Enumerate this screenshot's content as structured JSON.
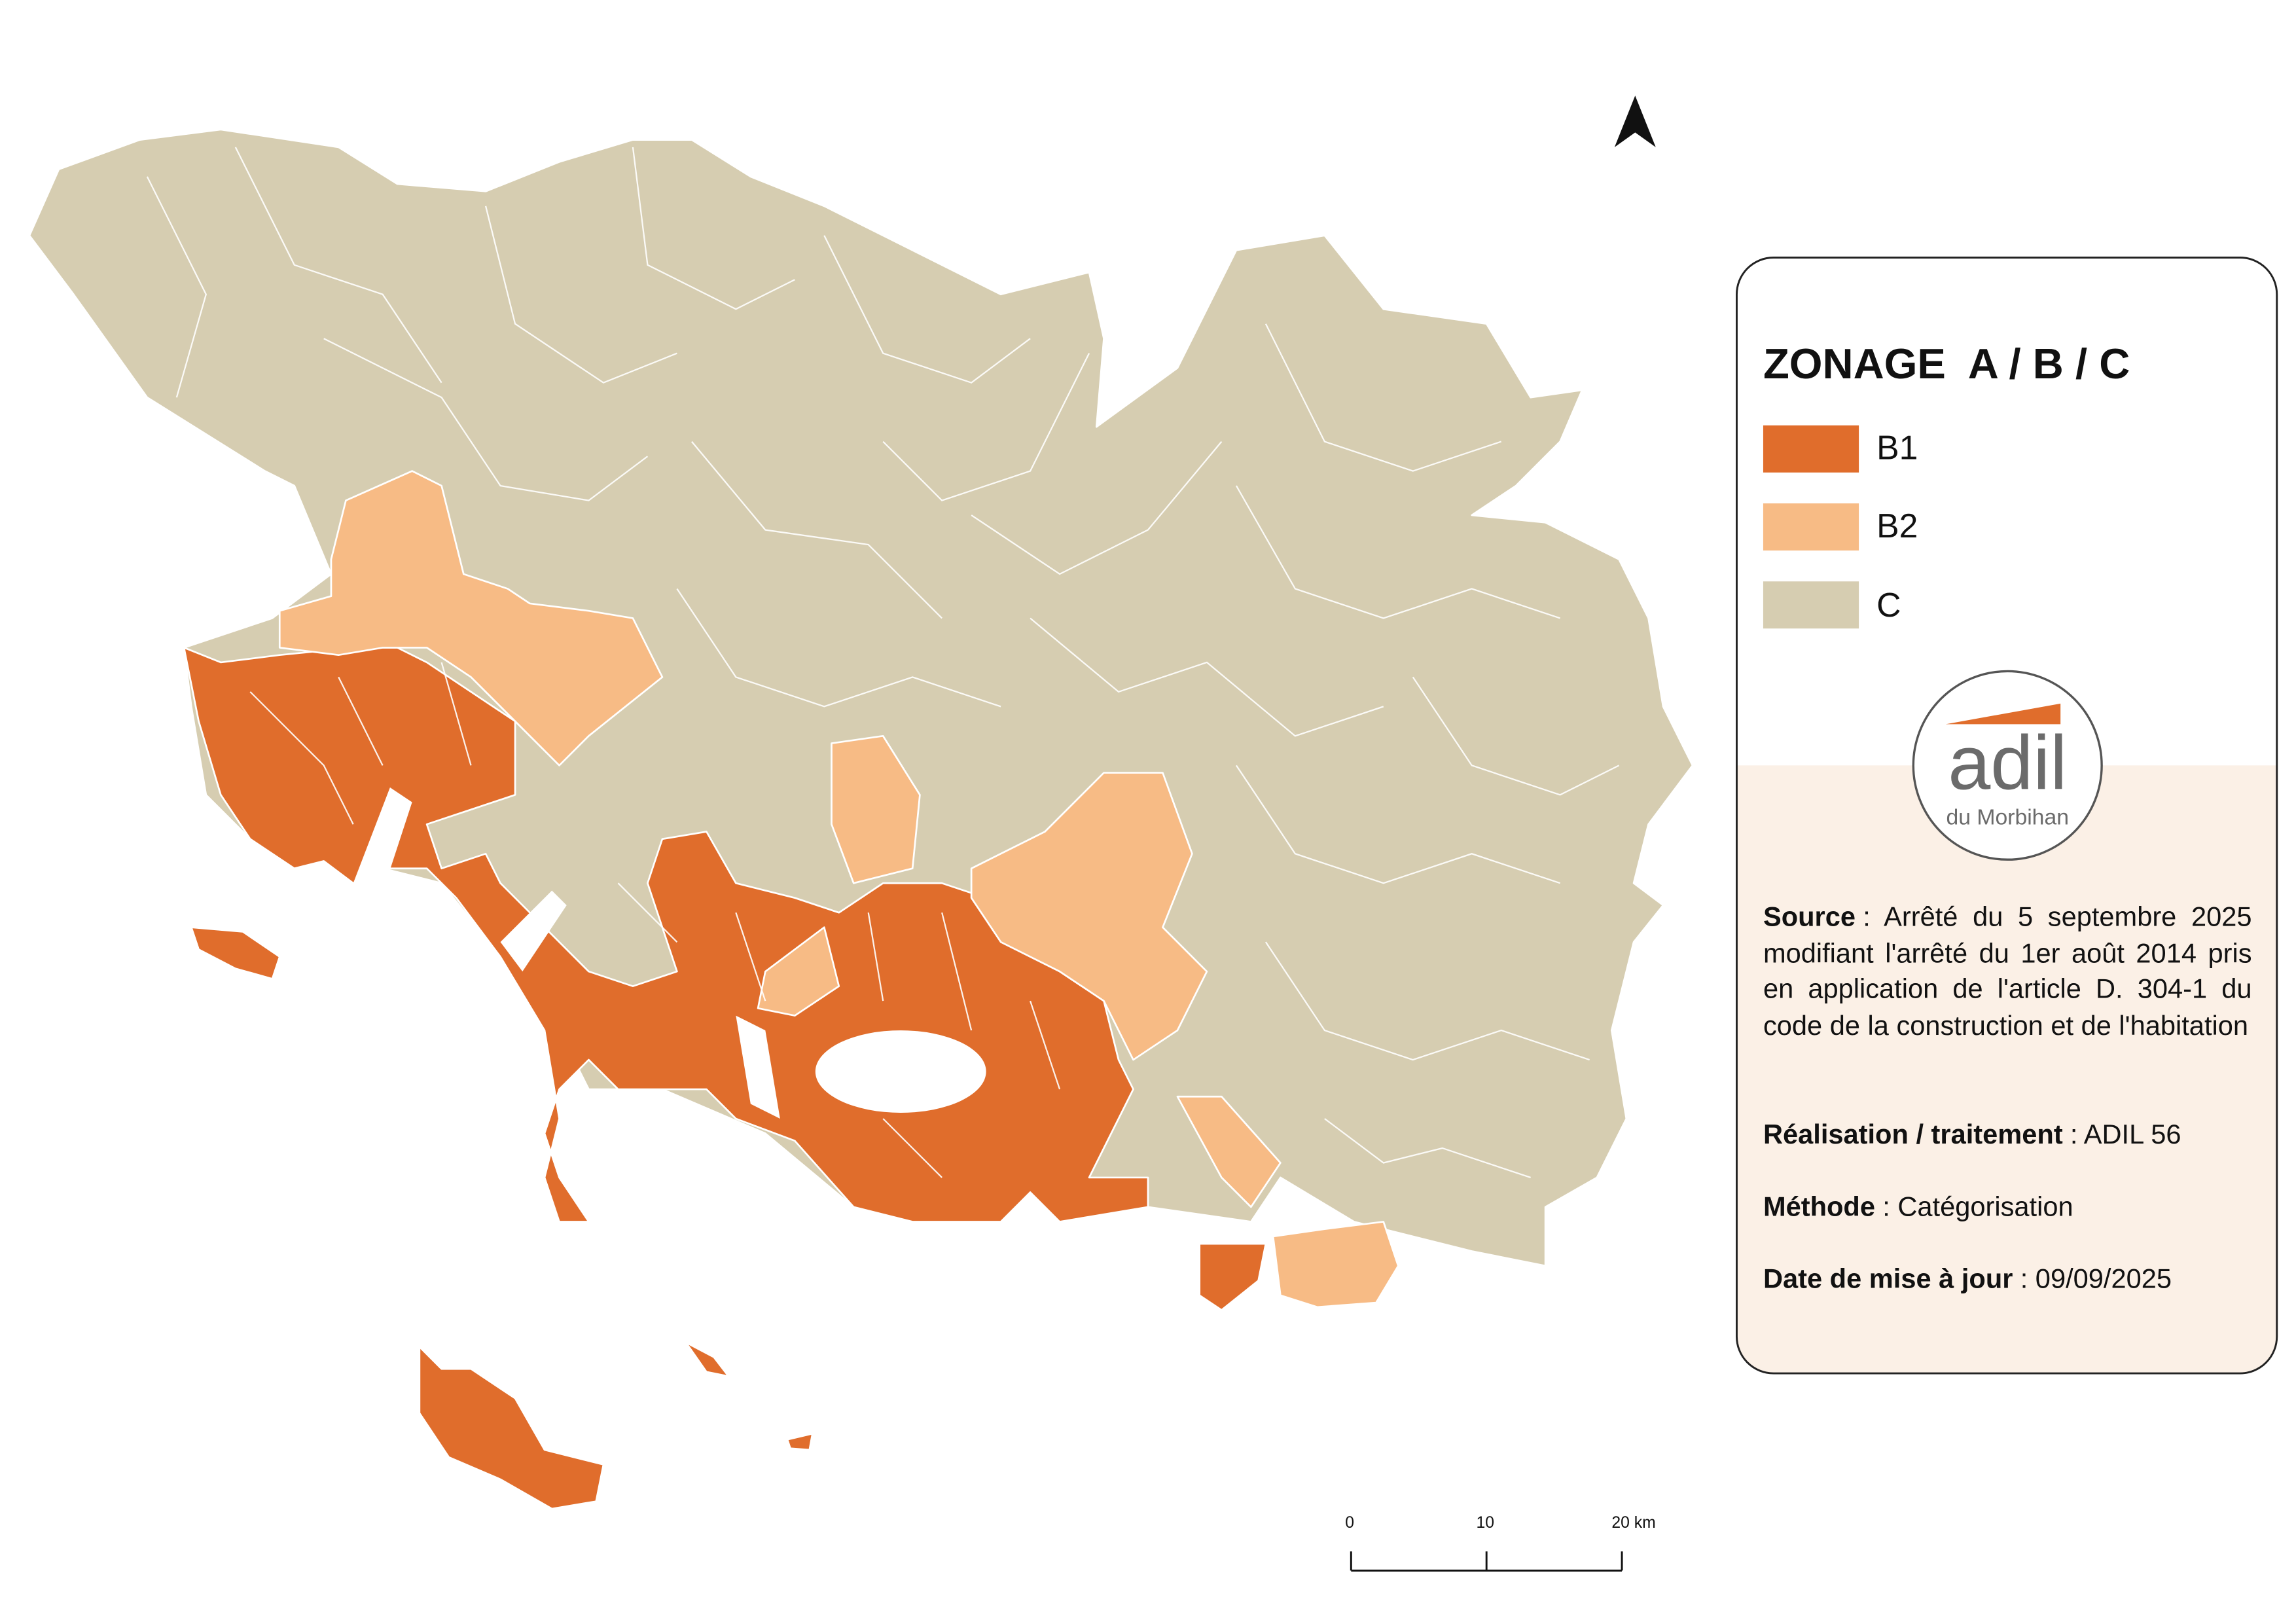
{
  "legend": {
    "title": "ZONAGE  A / B / C",
    "items": [
      {
        "label": "B1",
        "color": "#e06d2c"
      },
      {
        "label": "B2",
        "color": "#f7bb85"
      },
      {
        "label": "C",
        "color": "#d6cdb1"
      }
    ]
  },
  "logo": {
    "name": "adil",
    "subtitle": "du Morbihan"
  },
  "notes": [
    {
      "label": "Source",
      "text": ": Arrêté du 5 septembre 2025 modifiant l'arrêté du 1er août 2014 pris en application de l'article D. 304-1 du code de la construction et de l'habitation"
    },
    {
      "label": "Réalisation / traitement",
      "text": ": ADIL 56"
    },
    {
      "label": "Méthode",
      "text": ": Catégorisation"
    },
    {
      "label": "Date de mise à jour",
      "text": ": 09/09/2025"
    }
  ],
  "scale_bar": {
    "ticks": [
      "0",
      "10",
      "20 km"
    ]
  }
}
